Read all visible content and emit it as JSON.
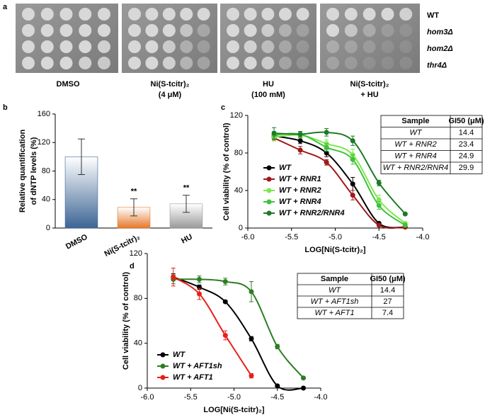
{
  "panel_labels": [
    "a",
    "b",
    "c",
    "d"
  ],
  "panel_a": {
    "conditions": [
      [
        "DMSO"
      ],
      [
        "Ni(S-tcitr)₂",
        "(4 μM)"
      ],
      [
        "HU",
        "(100 mM)"
      ],
      [
        "Ni(S-tcitr)₂",
        "+ HU"
      ]
    ],
    "strains": [
      "WT",
      "hom3Δ",
      "hom2Δ",
      "thr4Δ"
    ]
  },
  "chart_data": [
    {
      "type": "bar",
      "y_label": [
        "Relative quantification",
        "of dNTP levels (%)"
      ],
      "categories": [
        "DMSO",
        "Ni(S-tcitr)₂",
        "HU"
      ],
      "values": [
        100,
        29,
        34
      ],
      "errors": [
        25,
        12,
        12
      ],
      "significance": [
        null,
        "**",
        "**"
      ],
      "colors": [
        "#3d6595",
        "#e5782a",
        "#9a9a9a"
      ],
      "ylim": [
        0,
        160
      ],
      "yticks": [
        0,
        40,
        80,
        120,
        160
      ]
    },
    {
      "type": "line",
      "x_label": "LOG[Ni(S-tcitr)₂]",
      "y_label": "Cell viability (% of control)",
      "x": [
        -5.7,
        -5.4,
        -5.1,
        -4.8,
        -4.5,
        -4.2
      ],
      "series": [
        {
          "name": "WT",
          "color": "#000000",
          "values": [
            98,
            93,
            80,
            47,
            5,
            1
          ],
          "errors": [
            3,
            3,
            4,
            7,
            1,
            1
          ]
        },
        {
          "name": "WT + RNR1",
          "color": "#a01818",
          "values": [
            96,
            83,
            70,
            35,
            3,
            1
          ],
          "errors": [
            3,
            4,
            3,
            5,
            1,
            1
          ]
        },
        {
          "name": "WT + RNR2",
          "color": "#7ee84e",
          "values": [
            97,
            99,
            90,
            78,
            30,
            5
          ],
          "errors": [
            4,
            3,
            4,
            6,
            5,
            1
          ]
        },
        {
          "name": "WT + RNR4",
          "color": "#3fc23a",
          "values": [
            99,
            100,
            86,
            73,
            24,
            3
          ],
          "errors": [
            4,
            3,
            4,
            5,
            4,
            1
          ]
        },
        {
          "name": "WT + RNR2/RNR4",
          "color": "#1d7a25",
          "values": [
            101,
            100,
            102,
            93,
            48,
            15
          ],
          "errors": [
            6,
            3,
            4,
            5,
            3,
            1
          ]
        }
      ],
      "xlim": [
        -6,
        -4
      ],
      "xticks": [
        {
          "value": -6,
          "label": "-6.0"
        },
        {
          "value": -5.5,
          "label": "-5.5"
        },
        {
          "value": -5,
          "label": "-5.0"
        },
        {
          "value": -4.5,
          "label": "-4.5"
        },
        {
          "value": -4,
          "label": "-4.0"
        }
      ],
      "ylim": [
        0,
        120
      ],
      "yticks": [
        0,
        40,
        80,
        120
      ],
      "table": {
        "columns": [
          "Sample",
          "GI50 (μM)"
        ],
        "rows": [
          [
            "WT",
            14.4
          ],
          [
            "WT + RNR2",
            23.4
          ],
          [
            "WT + RNR4",
            24.9
          ],
          [
            "WT + RNR2/RNR4",
            29.9
          ]
        ]
      }
    },
    {
      "type": "line",
      "x_label": "LOG[Ni(S-tcitr)₂]",
      "y_label": "Cell viability (% of control)",
      "x": [
        -5.7,
        -5.4,
        -5.1,
        -4.8,
        -4.5,
        -4.2
      ],
      "series": [
        {
          "name": "WT",
          "color": "#000000",
          "values": [
            99,
            90,
            77,
            44,
            2,
            0
          ],
          "errors": [
            3,
            2,
            1,
            2,
            1,
            1
          ]
        },
        {
          "name": "WT + AFT1sh",
          "color": "#2e7d24",
          "values": [
            97,
            97,
            95,
            86,
            37,
            9
          ],
          "errors": [
            4,
            3,
            3,
            9,
            2,
            1
          ]
        },
        {
          "name": "WT + AFT1",
          "color": "#e8201a",
          "values": [
            99,
            84,
            47,
            11,
            null,
            null
          ],
          "errors": [
            8,
            5,
            4,
            2,
            null,
            null
          ]
        }
      ],
      "xlim": [
        -6,
        -4
      ],
      "xticks": [
        {
          "value": -6,
          "label": "-6.0"
        },
        {
          "value": -5.5,
          "label": "-5.5"
        },
        {
          "value": -5,
          "label": "-5.0"
        },
        {
          "value": -4.5,
          "label": "-4.5"
        },
        {
          "value": -4,
          "label": "-4.0"
        }
      ],
      "ylim": [
        0,
        120
      ],
      "yticks": [
        0,
        40,
        80,
        120
      ],
      "table": {
        "columns": [
          "Sample",
          "GI50 (μM)"
        ],
        "rows": [
          [
            "WT",
            14.4
          ],
          [
            "WT + AFT1sh",
            27
          ],
          [
            "WT + AFT1",
            7.4
          ]
        ]
      }
    }
  ]
}
